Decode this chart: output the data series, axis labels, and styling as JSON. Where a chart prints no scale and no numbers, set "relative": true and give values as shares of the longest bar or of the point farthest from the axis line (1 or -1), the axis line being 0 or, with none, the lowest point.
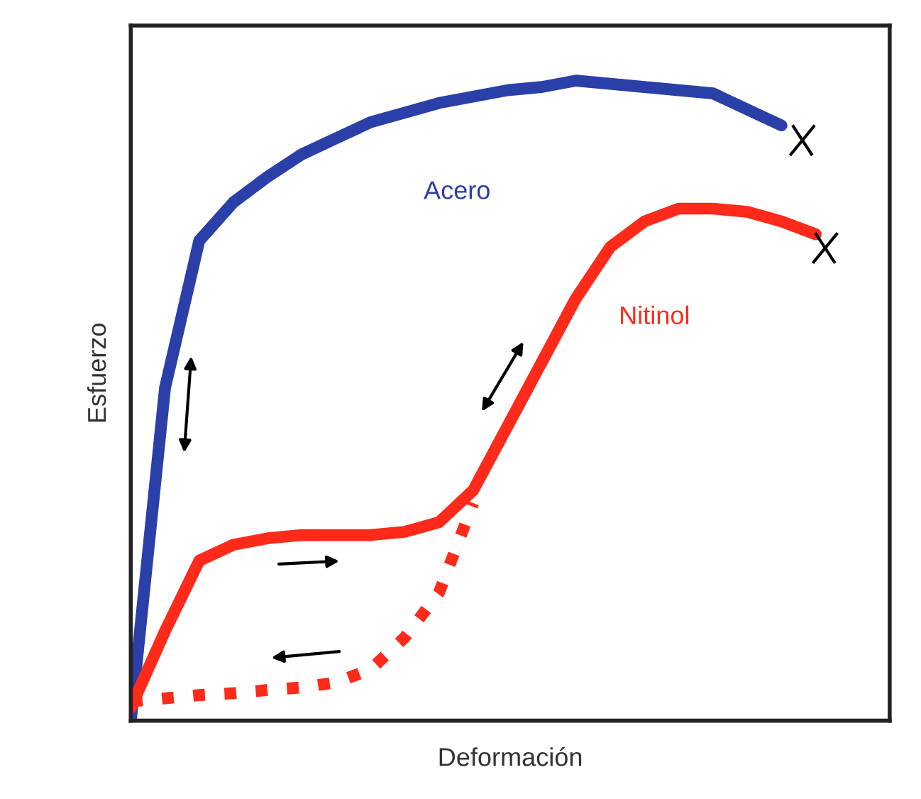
{
  "chart_data": {
    "type": "line",
    "relative": true,
    "xlabel": "Deformación",
    "ylabel": "Esfuerzo",
    "categories": [
      null,
      null,
      null,
      null,
      null,
      null,
      null,
      null,
      null,
      null,
      null,
      null,
      null,
      null,
      null,
      null,
      null,
      null,
      null,
      null,
      null
    ],
    "series": [
      {
        "name": "Acero",
        "color": "#2b3fa8",
        "line_style": "solid",
        "values": [
          0,
          0.52,
          0.75,
          0.81,
          0.85,
          0.885,
          0.91,
          0.935,
          0.95,
          0.965,
          0.975,
          0.985,
          0.99,
          1.0,
          0.995,
          0.99,
          0.985,
          0.98,
          0.955,
          0.93,
          null
        ]
      },
      {
        "name": "Nitinol",
        "color": "#ff2a1a",
        "line_style": "solid",
        "values": [
          0.02,
          0.14,
          0.25,
          0.275,
          0.285,
          0.29,
          0.29,
          0.29,
          0.295,
          0.31,
          0.36,
          0.46,
          0.56,
          0.66,
          0.74,
          0.78,
          0.8,
          0.8,
          0.795,
          0.78,
          0.76
        ]
      },
      {
        "color": "#ff2a1a",
        "line_style": "dotted",
        "values": [
          0.03,
          0.035,
          0.04,
          0.043,
          0.048,
          0.052,
          0.06,
          0.08,
          0.13,
          0.2,
          0.34,
          null,
          null,
          null,
          null,
          null,
          null,
          null,
          null,
          null,
          null
        ]
      }
    ]
  }
}
